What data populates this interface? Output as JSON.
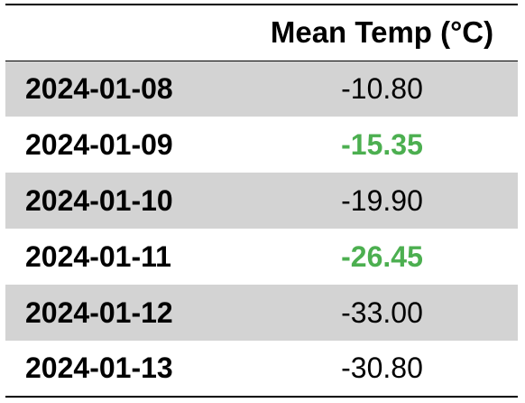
{
  "chart_data": {
    "type": "table",
    "columns": [
      "",
      "Mean Temp (°C)"
    ],
    "rows": [
      {
        "date": "2024-01-08",
        "value": "-10.80",
        "highlight": false
      },
      {
        "date": "2024-01-09",
        "value": "-15.35",
        "highlight": true
      },
      {
        "date": "2024-01-10",
        "value": "-19.90",
        "highlight": false
      },
      {
        "date": "2024-01-11",
        "value": "-26.45",
        "highlight": true
      },
      {
        "date": "2024-01-12",
        "value": "-33.00",
        "highlight": false
      },
      {
        "date": "2024-01-13",
        "value": "-30.80",
        "highlight": false
      }
    ],
    "colors": {
      "highlight_text": "#4caf50",
      "row_shade": "#d3d3d3",
      "text": "#000000"
    }
  }
}
